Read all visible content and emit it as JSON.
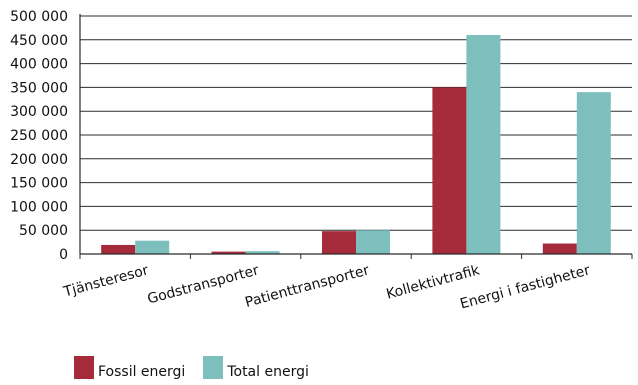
{
  "chart_data": {
    "type": "bar",
    "categories": [
      "Tjänsteresor",
      "Godstransporter",
      "Patienttransporter",
      "Kollektivtrafik",
      "Energi i fastigheter"
    ],
    "series": [
      {
        "name": "Fossil energi",
        "color": "#A52A3A",
        "values": [
          19000,
          5000,
          48000,
          350000,
          22000
        ]
      },
      {
        "name": "Total energi",
        "color": "#7DBFBD",
        "values": [
          28000,
          6000,
          50000,
          460000,
          340000
        ]
      }
    ],
    "yticks": [
      "500 000",
      "450 000",
      "400 000",
      "350 000",
      "300 000",
      "250 000",
      "200 000",
      "150 000",
      "100 000",
      "50 000",
      "0"
    ],
    "ylim": [
      0,
      500000
    ],
    "ystep": 50000,
    "grid": true,
    "legend_position": "bottom-left"
  }
}
